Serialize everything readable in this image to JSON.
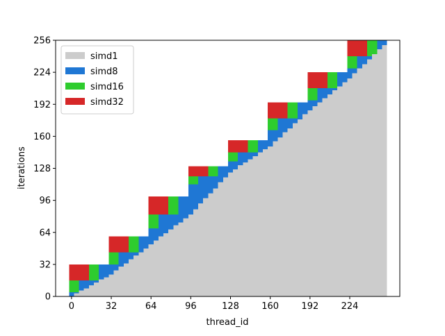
{
  "chart_data": {
    "type": "stacked_bar",
    "xlabel": "thread_id",
    "ylabel": "iterations",
    "x": [
      0,
      4,
      8,
      12,
      16,
      20,
      24,
      28,
      32,
      36,
      40,
      44,
      48,
      52,
      56,
      60,
      64,
      68,
      72,
      76,
      80,
      84,
      88,
      92,
      96,
      100,
      104,
      108,
      112,
      116,
      120,
      124,
      128,
      132,
      136,
      140,
      144,
      148,
      152,
      156,
      160,
      164,
      168,
      172,
      176,
      180,
      184,
      188,
      192,
      196,
      200,
      204,
      208,
      212,
      216,
      220,
      224,
      228,
      232,
      236,
      240,
      244,
      248,
      252
    ],
    "bar_width": 4,
    "series": [
      {
        "name": "simd1",
        "color": "#cccccc",
        "values": [
          0,
          3,
          6,
          8,
          11,
          14,
          17,
          19,
          22,
          26,
          30,
          33,
          37,
          41,
          44,
          48,
          52,
          56,
          60,
          63,
          67,
          71,
          74,
          78,
          82,
          87,
          93,
          98,
          103,
          108,
          114,
          119,
          124,
          127,
          131,
          134,
          137,
          140,
          144,
          147,
          150,
          155,
          159,
          164,
          168,
          173,
          177,
          182,
          186,
          190,
          194,
          198,
          202,
          206,
          210,
          214,
          218,
          223,
          228,
          232,
          237,
          242,
          247,
          251
        ]
      },
      {
        "name": "simd8",
        "color": "#1f77d4",
        "values": [
          4,
          1,
          10,
          8,
          5,
          2,
          15,
          13,
          10,
          6,
          14,
          11,
          7,
          3,
          16,
          12,
          16,
          12,
          22,
          19,
          15,
          11,
          26,
          22,
          30,
          25,
          27,
          22,
          17,
          12,
          16,
          11,
          11,
          8,
          13,
          10,
          7,
          4,
          12,
          9,
          16,
          11,
          19,
          14,
          10,
          5,
          17,
          12,
          10,
          6,
          14,
          10,
          6,
          2,
          14,
          10,
          10,
          5,
          12,
          8,
          3,
          0,
          9,
          5
        ]
      },
      {
        "name": "simd16",
        "color": "#2ecc2e",
        "values": [
          12,
          12,
          0,
          0,
          16,
          16,
          0,
          0,
          12,
          12,
          0,
          0,
          16,
          16,
          0,
          0,
          14,
          14,
          0,
          0,
          18,
          18,
          0,
          0,
          8,
          8,
          0,
          0,
          10,
          10,
          0,
          0,
          9,
          9,
          0,
          0,
          12,
          12,
          0,
          0,
          12,
          12,
          0,
          0,
          16,
          16,
          0,
          0,
          12,
          12,
          0,
          0,
          16,
          16,
          0,
          0,
          12,
          12,
          0,
          0,
          16,
          14,
          0,
          0
        ]
      },
      {
        "name": "simd32",
        "color": "#d62728",
        "values": [
          16,
          16,
          16,
          16,
          0,
          0,
          0,
          0,
          16,
          16,
          16,
          16,
          0,
          0,
          0,
          0,
          18,
          18,
          18,
          18,
          0,
          0,
          0,
          0,
          10,
          10,
          10,
          10,
          0,
          0,
          0,
          0,
          12,
          12,
          12,
          12,
          0,
          0,
          0,
          0,
          16,
          16,
          16,
          16,
          0,
          0,
          0,
          0,
          16,
          16,
          16,
          16,
          0,
          0,
          0,
          0,
          16,
          16,
          16,
          16,
          0,
          0,
          0,
          0
        ]
      }
    ],
    "xlim": [
      -12.8,
      264.3
    ],
    "ylim": [
      0,
      256
    ],
    "xticks": [
      0,
      32,
      64,
      96,
      128,
      160,
      192,
      224
    ],
    "yticks": [
      0,
      32,
      64,
      96,
      128,
      160,
      192,
      224,
      256
    ],
    "legend": "upper left"
  }
}
